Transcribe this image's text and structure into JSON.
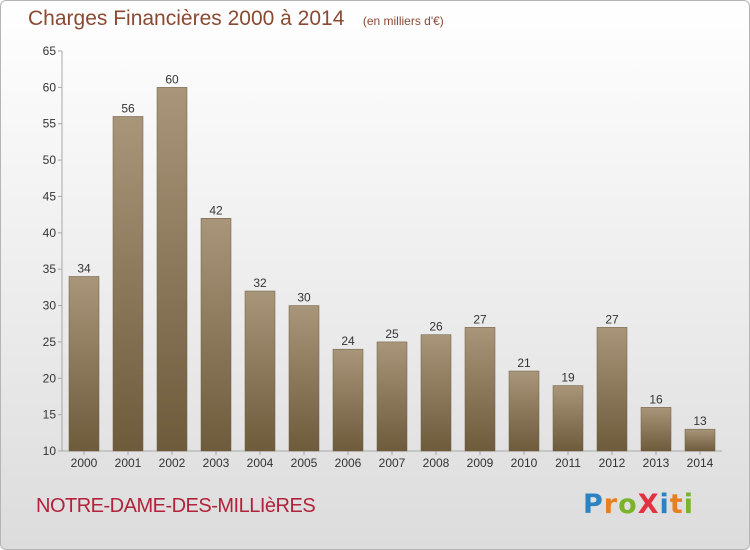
{
  "title": "Charges Financières 2000 à 2014",
  "subtitle": "(en milliers d'€)",
  "commune": "NOTRE-DAME-DES-MILLIèRES",
  "logo": {
    "text": "ProXiti",
    "letters": [
      "P",
      "r",
      "o",
      "X",
      "i",
      "t",
      "i"
    ],
    "colors": [
      "#2c83c4",
      "#e87f1e",
      "#7bb42a",
      "#e2323f",
      "#2c83c4",
      "#e87f1e",
      "#7bb42a"
    ]
  },
  "chart_data": {
    "type": "bar",
    "title": "Charges Financières 2000 à 2014",
    "subtitle": "(en milliers d'€)",
    "categories": [
      "2000",
      "2001",
      "2002",
      "2003",
      "2004",
      "2005",
      "2006",
      "2007",
      "2008",
      "2009",
      "2010",
      "2011",
      "2012",
      "2013",
      "2014"
    ],
    "values": [
      34,
      56,
      60,
      42,
      32,
      30,
      24,
      25,
      26,
      27,
      21,
      19,
      27,
      16,
      13
    ],
    "ylim": [
      10,
      65
    ],
    "yticks": [
      10,
      15,
      20,
      25,
      30,
      35,
      40,
      45,
      50,
      55,
      60,
      65
    ],
    "grid": false,
    "bar_color": "#8b7352"
  }
}
